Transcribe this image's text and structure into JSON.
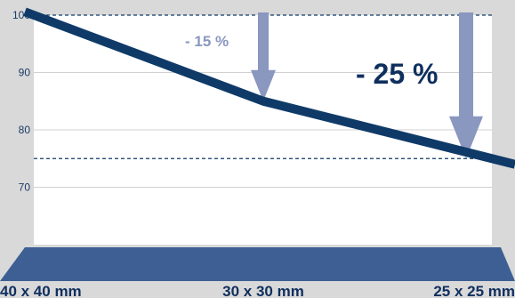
{
  "chart_data": {
    "type": "line",
    "categories": [
      "40 x 40 mm",
      "30 x 30 mm",
      "25 x 25 mm"
    ],
    "series": [
      {
        "values": [
          100,
          85,
          75
        ]
      }
    ],
    "yticks": [
      70,
      80,
      90,
      100
    ],
    "ylim": [
      60,
      100
    ],
    "reference_lines": [
      100,
      75
    ],
    "annotations": [
      {
        "label": "- 15 %",
        "category": "30 x 30 mm",
        "value": 85
      },
      {
        "label": "- 25 %",
        "category": "25 x 25 mm",
        "value": 75
      }
    ],
    "grid": true,
    "colors": {
      "background": "#d9d9d9",
      "plot": "#ffffff",
      "line": "#0f3a68",
      "arrow": "#8a97bf",
      "base": "#3d5f93",
      "reference": "#0f3a68"
    }
  }
}
